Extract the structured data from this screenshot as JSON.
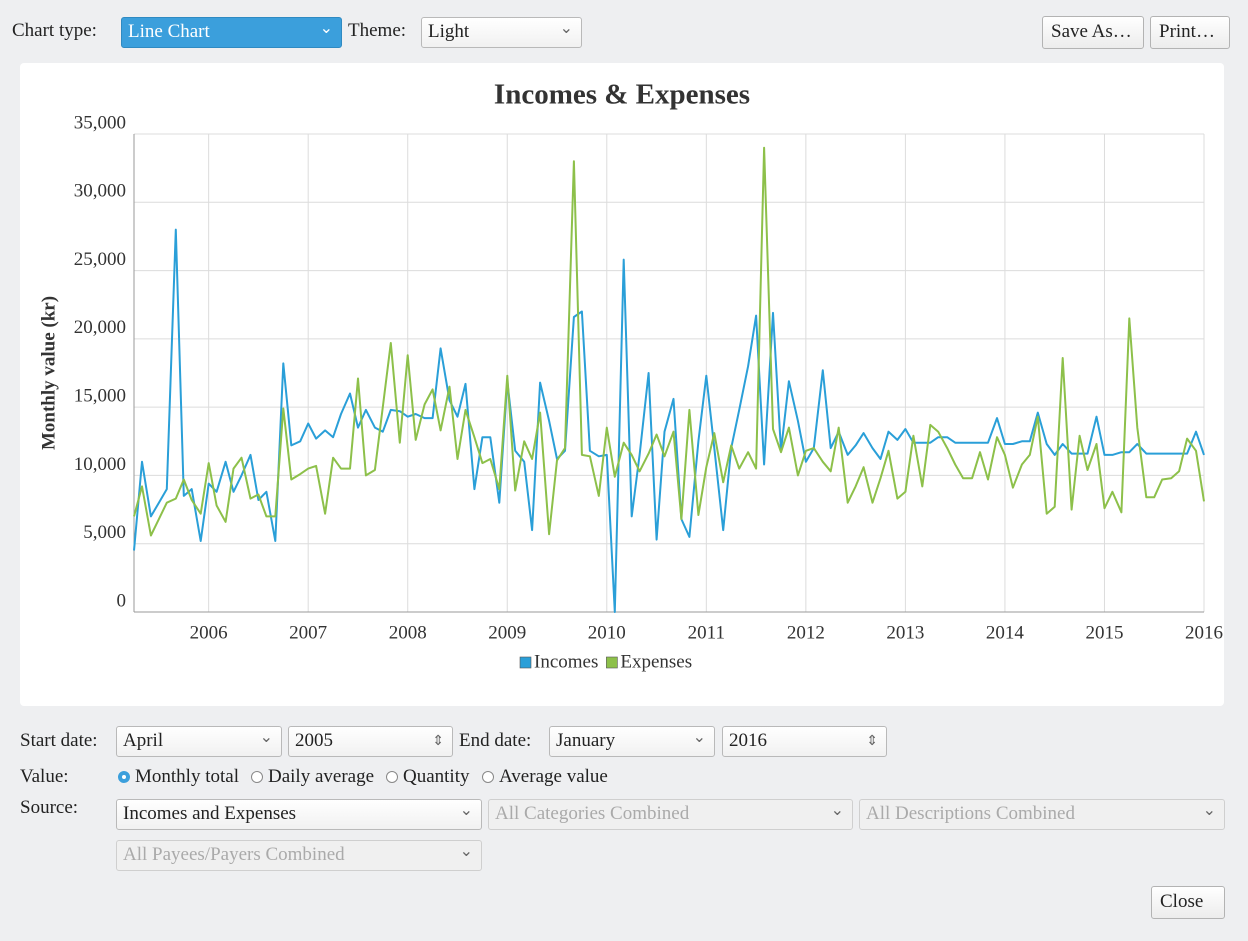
{
  "toolbar": {
    "chart_type_label": "Chart type:",
    "chart_type": "Line Chart",
    "theme_label": "Theme:",
    "theme": "Light",
    "save_as": "Save As…",
    "print": "Print…"
  },
  "chart_data": {
    "type": "line",
    "title": "Incomes & Expenses",
    "y_label": "Monthly value (kr)",
    "x": [
      2005.25,
      2005.33,
      2005.42,
      2005.5,
      2005.58,
      2005.67,
      2005.75,
      2005.83,
      2005.92,
      2006,
      2006.08,
      2006.17,
      2006.25,
      2006.33,
      2006.42,
      2006.5,
      2006.58,
      2006.67,
      2006.75,
      2006.83,
      2006.92,
      2007,
      2007.08,
      2007.17,
      2007.25,
      2007.33,
      2007.42,
      2007.5,
      2007.58,
      2007.67,
      2007.75,
      2007.83,
      2007.92,
      2008,
      2008.08,
      2008.17,
      2008.25,
      2008.33,
      2008.42,
      2008.5,
      2008.58,
      2008.67,
      2008.75,
      2008.83,
      2008.92,
      2009,
      2009.08,
      2009.17,
      2009.25,
      2009.33,
      2009.42,
      2009.5,
      2009.58,
      2009.67,
      2009.75,
      2009.83,
      2009.92,
      2010,
      2010.08,
      2010.17,
      2010.25,
      2010.33,
      2010.42,
      2010.5,
      2010.58,
      2010.67,
      2010.75,
      2010.83,
      2010.92,
      2011,
      2011.08,
      2011.17,
      2011.25,
      2011.33,
      2011.42,
      2011.5,
      2011.58,
      2011.67,
      2011.75,
      2011.83,
      2011.92,
      2012,
      2012.08,
      2012.17,
      2012.25,
      2012.33,
      2012.42,
      2012.5,
      2012.58,
      2012.67,
      2012.75,
      2012.83,
      2012.92,
      2013,
      2013.08,
      2013.17,
      2013.25,
      2013.33,
      2013.42,
      2013.5,
      2013.58,
      2013.67,
      2013.75,
      2013.83,
      2013.92,
      2014,
      2014.08,
      2014.17,
      2014.25,
      2014.33,
      2014.42,
      2014.5,
      2014.58,
      2014.67,
      2014.75,
      2014.83,
      2014.92,
      2015,
      2015.08,
      2015.17,
      2015.25,
      2015.33,
      2015.42,
      2015.5,
      2015.58,
      2015.67,
      2015.75,
      2015.83,
      2015.92,
      2016
    ],
    "series": [
      {
        "name": "Incomes",
        "color": "#2a9fd8",
        "values": [
          4500,
          11000,
          7000,
          8000,
          9000,
          28000,
          8500,
          9000,
          5200,
          9400,
          8800,
          11000,
          8800,
          10000,
          11500,
          8200,
          8800,
          5200,
          18200,
          12200,
          12500,
          13800,
          12700,
          13300,
          12800,
          14500,
          16000,
          13500,
          14800,
          13500,
          13200,
          14800,
          14700,
          14300,
          14500,
          14200,
          14200,
          19300,
          15500,
          14300,
          16700,
          9000,
          12800,
          12800,
          8000,
          16900,
          11800,
          11000,
          6000,
          16800,
          14000,
          11200,
          11800,
          21600,
          22000,
          11800,
          11400,
          11500,
          0,
          25800,
          7000,
          11500,
          17500,
          5300,
          13200,
          15600,
          6800,
          5500,
          12500,
          17300,
          12000,
          6000,
          12000,
          14800,
          18000,
          21700,
          10800,
          21900,
          11800,
          16900,
          14000,
          11000,
          12000,
          17700,
          12000,
          13200,
          11500,
          12200,
          13100,
          12000,
          11200,
          13200,
          12600,
          13400,
          12400,
          12400,
          12400,
          12800,
          12800,
          12400,
          12400,
          12400,
          12400,
          12400,
          14200,
          12300,
          12300,
          12500,
          12500,
          14600,
          12300,
          11500,
          12300,
          11600,
          11600,
          11600,
          14300,
          11500,
          11500,
          11700,
          11700,
          12300,
          11600,
          11600,
          11600,
          11600,
          11600,
          11600,
          13200,
          11500
        ]
      },
      {
        "name": "Expenses",
        "color": "#8dc04a",
        "values": [
          7000,
          9200,
          5600,
          6800,
          8000,
          8300,
          9700,
          8200,
          7200,
          10900,
          7800,
          6600,
          10500,
          11300,
          8300,
          8600,
          7000,
          7000,
          14900,
          9700,
          10100,
          10500,
          10700,
          7200,
          11300,
          10500,
          10500,
          17100,
          10000,
          10400,
          15000,
          19700,
          12400,
          18800,
          12600,
          15200,
          16300,
          13300,
          16500,
          11200,
          14800,
          12800,
          10900,
          11200,
          9000,
          17300,
          8900,
          12500,
          11200,
          14600,
          5700,
          11100,
          12000,
          33000,
          11500,
          11400,
          8500,
          13500,
          9900,
          12400,
          11500,
          10300,
          11600,
          13000,
          11400,
          13200,
          6800,
          14800,
          7100,
          10600,
          13100,
          9500,
          12200,
          10500,
          11700,
          10500,
          34000,
          13400,
          11700,
          13500,
          10000,
          11800,
          12000,
          11000,
          10300,
          13500,
          8000,
          9200,
          10600,
          8000,
          9800,
          11800,
          8300,
          8800,
          12900,
          9200,
          13700,
          13200,
          12000,
          10800,
          9800,
          9800,
          11700,
          9700,
          12800,
          11500,
          9100,
          10800,
          11500,
          14300,
          7200,
          7700,
          18600,
          7500,
          12900,
          10400,
          12300,
          7600,
          8800,
          7300,
          21500,
          13500,
          8400,
          8400,
          9700,
          9800,
          10300,
          12700,
          11800,
          8100
        ]
      }
    ],
    "xlim": [
      2005.25,
      2016
    ],
    "xticks": [
      2006,
      2007,
      2008,
      2009,
      2010,
      2011,
      2012,
      2013,
      2014,
      2015,
      2016
    ],
    "ylim": [
      0,
      35000
    ],
    "yticks": [
      0,
      {
        "value": 5000,
        "label": "5,000"
      },
      {
        "value": 10000,
        "label": "10,000"
      },
      {
        "value": 15000,
        "label": "15,000"
      },
      {
        "value": 20000,
        "label": "20,000"
      },
      {
        "value": 25000,
        "label": "25,000"
      },
      {
        "value": 30000,
        "label": "30,000"
      },
      {
        "value": 35000,
        "label": "35,000"
      }
    ],
    "grid": true,
    "legend": "bottom"
  },
  "controls": {
    "start_label": "Start date:",
    "start_month": "April",
    "start_year": "2005",
    "end_label": "End date:",
    "end_month": "January",
    "end_year": "2016",
    "value_label": "Value:",
    "value_options": [
      "Monthly total",
      "Daily average",
      "Quantity",
      "Average value"
    ],
    "value_selected": 0,
    "source_label": "Source:",
    "source": "Incomes and Expenses",
    "categories": "All Categories Combined",
    "descriptions": "All Descriptions Combined",
    "payees": "All Payees/Payers Combined",
    "close": "Close"
  }
}
